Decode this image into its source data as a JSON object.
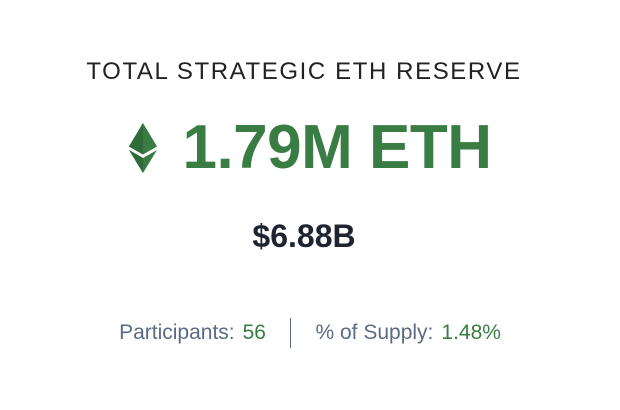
{
  "reserve": {
    "title": "TOTAL STRATEGIC ETH RESERVE",
    "icon": "ethereum-icon",
    "amount": "1.79M ETH",
    "usd_value": "$6.88B",
    "accent_color": "#3a7d44"
  },
  "stats": {
    "participants_label": "Participants:",
    "participants_value": "56",
    "supply_label": "% of Supply:",
    "supply_value": "1.48%"
  }
}
